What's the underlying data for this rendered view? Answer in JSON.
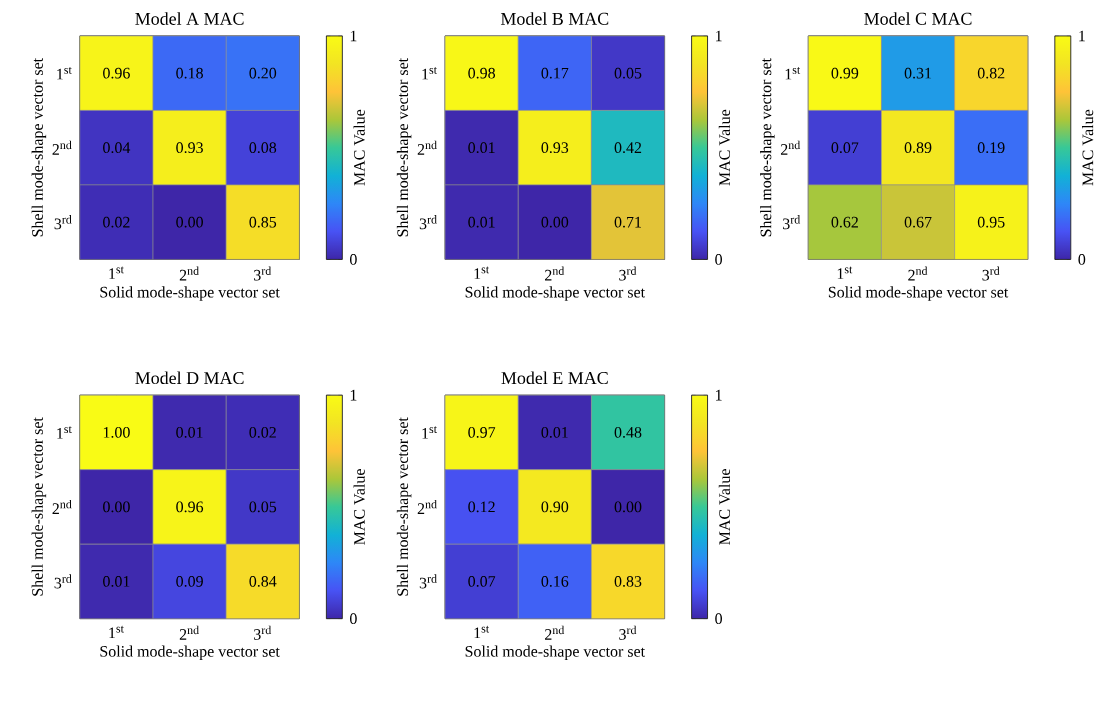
{
  "chart_data": [
    {
      "type": "heatmap",
      "title": "Model A MAC",
      "xlabel": "Solid mode-shape vector set",
      "ylabel": "Shell mode-shape vector set",
      "clabel": "MAC Value",
      "categories": [
        "1$^{st}$",
        "2$^{nd}$",
        "3$^{rd}$"
      ],
      "y_categories": [
        "1$^{st}$",
        "2$^{nd}$",
        "3$^{rd}$"
      ],
      "cells": [
        [
          0.96,
          0.18,
          0.2
        ],
        [
          0.04,
          0.93,
          0.08
        ],
        [
          0.02,
          0.0,
          0.85
        ]
      ],
      "cell_labels": [
        [
          "0.96",
          "0.18",
          "0.20"
        ],
        [
          "0.04",
          "0.93",
          "0.08"
        ],
        [
          "0.02",
          "0.00",
          "0.85"
        ]
      ],
      "clim": [
        0,
        1
      ],
      "cticks": [
        0,
        1
      ]
    },
    {
      "type": "heatmap",
      "title": "Model B MAC",
      "xlabel": "Solid mode-shape vector set",
      "ylabel": "Shell mode-shape vector set",
      "clabel": "MAC Value",
      "categories": [
        "1$^{st}$",
        "2$^{nd}$",
        "3$^{rd}$"
      ],
      "y_categories": [
        "1$^{st}$",
        "2$^{nd}$",
        "3$^{rd}$"
      ],
      "cells": [
        [
          0.98,
          0.17,
          0.05
        ],
        [
          0.01,
          0.93,
          0.42
        ],
        [
          0.01,
          0.0,
          0.71
        ]
      ],
      "cell_labels": [
        [
          "0.98",
          "0.17",
          "0.05"
        ],
        [
          "0.01",
          "0.93",
          "0.42"
        ],
        [
          "0.01",
          "0.00",
          "0.71"
        ]
      ],
      "clim": [
        0,
        1
      ],
      "cticks": [
        0,
        1
      ]
    },
    {
      "type": "heatmap",
      "title": "Model C MAC",
      "xlabel": "Solid mode-shape vector set",
      "ylabel": "Shell mode-shape vector set",
      "clabel": "MAC Value",
      "categories": [
        "1$^{st}$",
        "2$^{nd}$",
        "3$^{rd}$"
      ],
      "y_categories": [
        "1$^{st}$",
        "2$^{nd}$",
        "3$^{rd}$"
      ],
      "cells": [
        [
          0.99,
          0.31,
          0.82
        ],
        [
          0.07,
          0.89,
          0.19
        ],
        [
          0.62,
          0.67,
          0.95
        ]
      ],
      "cell_labels": [
        [
          "0.99",
          "0.31",
          "0.82"
        ],
        [
          "0.07",
          "0.89",
          "0.19"
        ],
        [
          "0.62",
          "0.67",
          "0.95"
        ]
      ],
      "clim": [
        0,
        1
      ],
      "cticks": [
        0,
        1
      ]
    },
    {
      "type": "heatmap",
      "title": "Model D MAC",
      "xlabel": "Solid mode-shape vector set",
      "ylabel": "Shell mode-shape vector set",
      "clabel": "MAC Value",
      "categories": [
        "1$^{st}$",
        "2$^{nd}$",
        "3$^{rd}$"
      ],
      "y_categories": [
        "1$^{st}$",
        "2$^{nd}$",
        "3$^{rd}$"
      ],
      "cells": [
        [
          1.0,
          0.01,
          0.02
        ],
        [
          0.0,
          0.96,
          0.05
        ],
        [
          0.01,
          0.09,
          0.84
        ]
      ],
      "cell_labels": [
        [
          "1.00",
          "0.01",
          "0.02"
        ],
        [
          "0.00",
          "0.96",
          "0.05"
        ],
        [
          "0.01",
          "0.09",
          "0.84"
        ]
      ],
      "clim": [
        0,
        1
      ],
      "cticks": [
        0,
        1
      ]
    },
    {
      "type": "heatmap",
      "title": "Model E MAC",
      "xlabel": "Solid mode-shape vector set",
      "ylabel": "Shell mode-shape vector set",
      "clabel": "MAC Value",
      "categories": [
        "1$^{st}$",
        "2$^{nd}$",
        "3$^{rd}$"
      ],
      "y_categories": [
        "1$^{st}$",
        "2$^{nd}$",
        "3$^{rd}$"
      ],
      "cells": [
        [
          0.97,
          0.01,
          0.48
        ],
        [
          0.12,
          0.9,
          0.0
        ],
        [
          0.07,
          0.16,
          0.83
        ]
      ],
      "cell_labels": [
        [
          "0.97",
          "0.01",
          "0.48"
        ],
        [
          "0.12",
          "0.90",
          "0.00"
        ],
        [
          "0.07",
          "0.16",
          "0.83"
        ]
      ],
      "clim": [
        0,
        1
      ],
      "cticks": [
        0,
        1
      ]
    }
  ]
}
